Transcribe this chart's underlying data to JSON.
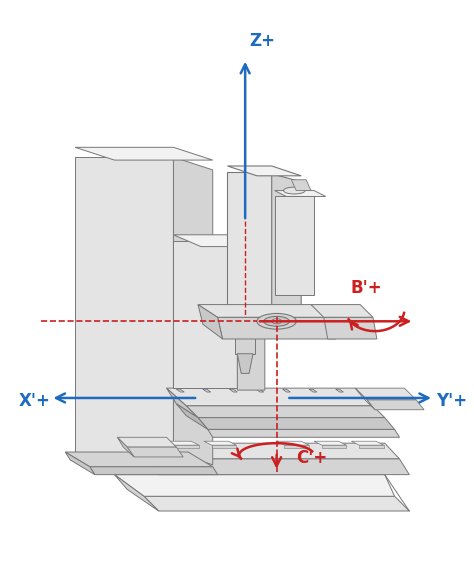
{
  "figsize": [
    4.74,
    5.61
  ],
  "dpi": 100,
  "bg_color": "#ffffff",
  "lc": "#999999",
  "lc2": "#777777",
  "lc3": "#555555",
  "f1": "#f2f2f2",
  "f2": "#e4e4e4",
  "f3": "#d4d4d4",
  "f4": "#c8c8c8",
  "f5": "#b8b8b8",
  "blue": "#1e6bbf",
  "red": "#cc1f1f",
  "axes_labels": {
    "Z": "Z+",
    "X": "X'+",
    "Y": "Y'+",
    "B": "B'+",
    "C": "C'+"
  }
}
